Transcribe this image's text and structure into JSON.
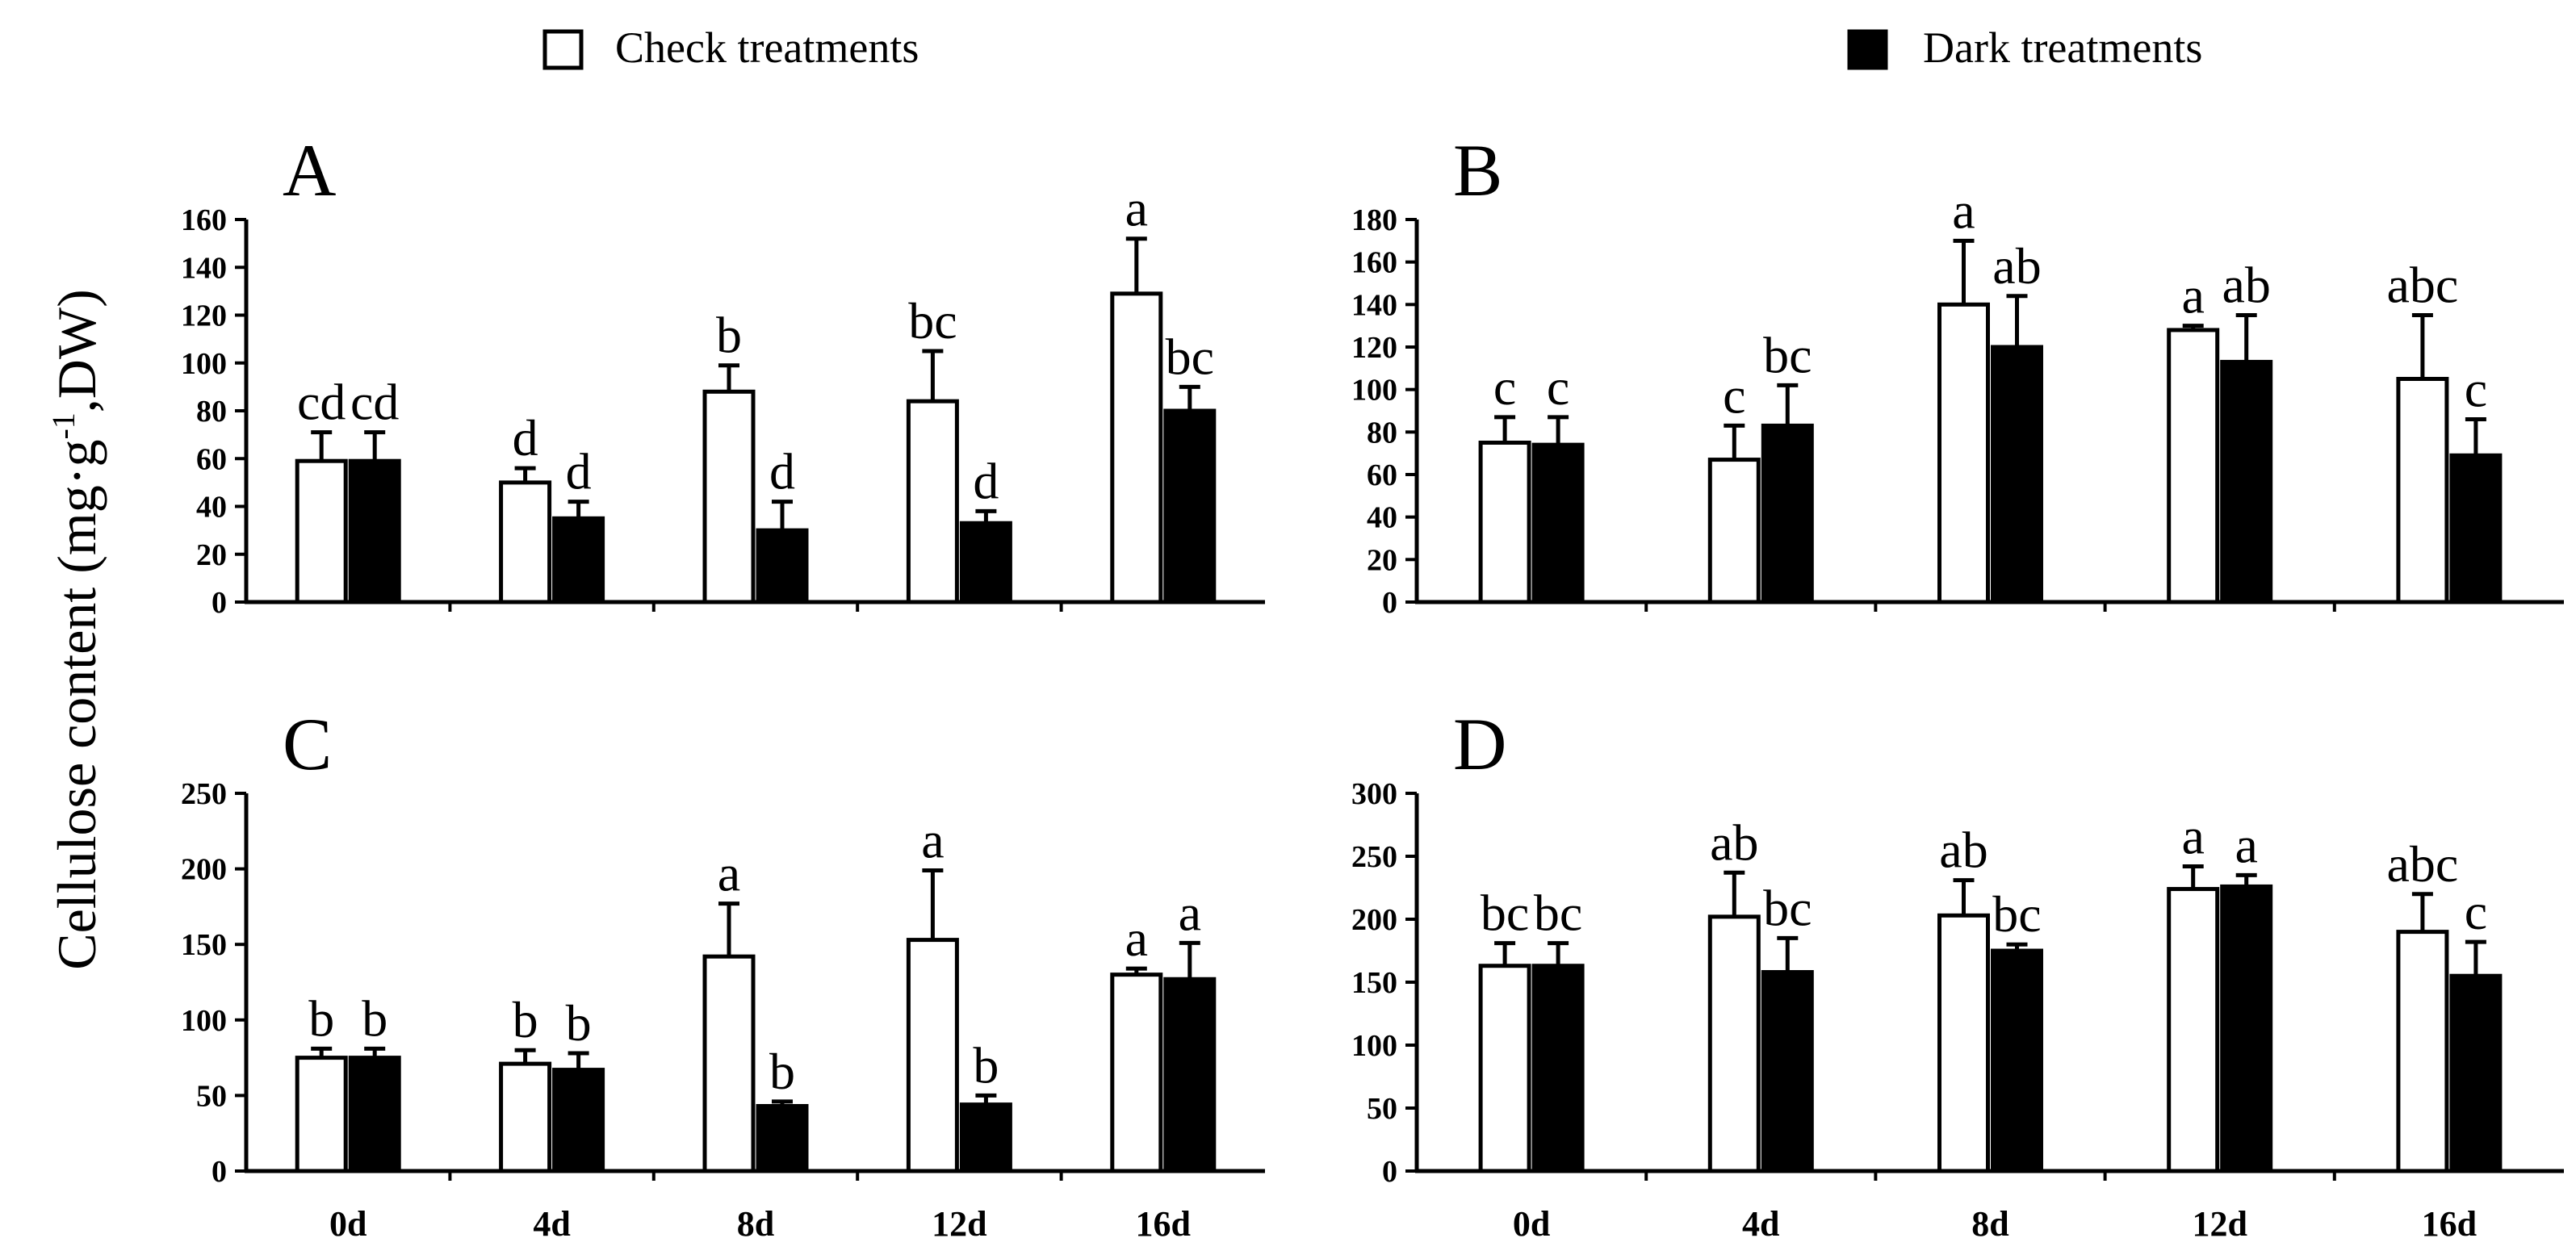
{
  "figure": {
    "y_axis_label_main": "Cellulose content (mg·g",
    "y_axis_label_sup": "-1",
    "y_axis_label_tail": ",DW)"
  },
  "legend": [
    {
      "label": "Check treatments",
      "color": "#ffffff"
    },
    {
      "label": "Dark treatments",
      "color": "#000000"
    }
  ],
  "colors": {
    "check": "#ffffff",
    "dark": "#000000",
    "axis": "#000000"
  },
  "chart_data": [
    {
      "panel": "A",
      "type": "bar",
      "categories": [
        "0d",
        "4d",
        "8d",
        "12d",
        "16d"
      ],
      "show_xticks": false,
      "ylim": [
        0,
        160
      ],
      "yticks": [
        0,
        20,
        40,
        60,
        80,
        100,
        120,
        140,
        160
      ],
      "series": [
        {
          "name": "Check treatments",
          "values": [
            59,
            50,
            88,
            84,
            129
          ],
          "errors": [
            12,
            6,
            11,
            21,
            23
          ],
          "labels": [
            "cd",
            "d",
            "b",
            "bc",
            "a"
          ]
        },
        {
          "name": "Dark treatments",
          "values": [
            59,
            35,
            30,
            33,
            80
          ],
          "errors": [
            12,
            7,
            12,
            5,
            10
          ],
          "labels": [
            "cd",
            "d",
            "d",
            "d",
            "bc"
          ]
        }
      ]
    },
    {
      "panel": "B",
      "type": "bar",
      "categories": [
        "0d",
        "4d",
        "8d",
        "12d",
        "16d"
      ],
      "show_xticks": false,
      "ylim": [
        0,
        180
      ],
      "yticks": [
        0,
        20,
        40,
        60,
        80,
        100,
        120,
        140,
        160,
        180
      ],
      "series": [
        {
          "name": "Check treatments",
          "values": [
            75,
            67,
            140,
            128,
            105
          ],
          "errors": [
            12,
            16,
            30,
            2,
            30
          ],
          "labels": [
            "c",
            "c",
            "a",
            "a",
            "abc"
          ]
        },
        {
          "name": "Dark treatments",
          "values": [
            74,
            83,
            120,
            113,
            69
          ],
          "errors": [
            13,
            19,
            24,
            22,
            17
          ],
          "labels": [
            "c",
            "bc",
            "ab",
            "ab",
            "c"
          ]
        }
      ]
    },
    {
      "panel": "C",
      "type": "bar",
      "categories": [
        "0d",
        "4d",
        "8d",
        "12d",
        "16d"
      ],
      "show_xticks": true,
      "ylim": [
        0,
        250
      ],
      "yticks": [
        0,
        50,
        100,
        150,
        200,
        250
      ],
      "series": [
        {
          "name": "Check treatments",
          "values": [
            75,
            71,
            142,
            153,
            130
          ],
          "errors": [
            6,
            9,
            35,
            46,
            4
          ],
          "labels": [
            "b",
            "b",
            "a",
            "a",
            "a"
          ]
        },
        {
          "name": "Dark treatments",
          "values": [
            75,
            67,
            43,
            44,
            127
          ],
          "errors": [
            6,
            11,
            3,
            6,
            24
          ],
          "labels": [
            "b",
            "b",
            "b",
            "b",
            "a"
          ]
        }
      ]
    },
    {
      "panel": "D",
      "type": "bar",
      "categories": [
        "0d",
        "4d",
        "8d",
        "12d",
        "16d"
      ],
      "show_xticks": true,
      "ylim": [
        0,
        300
      ],
      "yticks": [
        0,
        50,
        100,
        150,
        200,
        250,
        300
      ],
      "series": [
        {
          "name": "Check treatments",
          "values": [
            163,
            202,
            203,
            224,
            190
          ],
          "errors": [
            18,
            35,
            28,
            18,
            30
          ],
          "labels": [
            "bc",
            "ab",
            "ab",
            "a",
            "abc"
          ]
        },
        {
          "name": "Dark treatments",
          "values": [
            163,
            158,
            175,
            226,
            155
          ],
          "errors": [
            18,
            27,
            5,
            9,
            27
          ],
          "labels": [
            "bc",
            "bc",
            "bc",
            "a",
            "c"
          ]
        }
      ]
    }
  ]
}
